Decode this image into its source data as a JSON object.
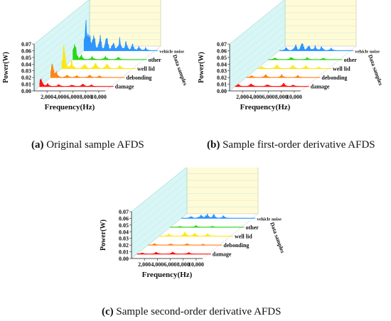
{
  "chart_data": [
    {
      "type": "area",
      "panel": "a",
      "ylabel": "Power(W)",
      "xlabel": "Frequency(Hz)",
      "zlabel": "Data samples",
      "ylim": [
        0,
        0.07
      ],
      "yticks": [
        "0.07",
        "0.06",
        "0.05",
        "0.04",
        "0.03",
        "0.02",
        "0.01",
        "0.00"
      ],
      "xlim": [
        0,
        11000
      ],
      "xticks": [
        "2,000",
        "4,000",
        "6,000",
        "8,000",
        "10,000"
      ],
      "series": [
        {
          "name": "damage",
          "color": "#ff0000",
          "peaks": [
            [
              200,
              0.018
            ],
            [
              1200,
              0.006
            ],
            [
              3000,
              0.004
            ],
            [
              5000,
              0.004
            ],
            [
              6700,
              0.005
            ],
            [
              8000,
              0.003
            ]
          ]
        },
        {
          "name": "debonding",
          "color": "#ff7a00",
          "peaks": [
            [
              250,
              0.028
            ],
            [
              800,
              0.012
            ],
            [
              2500,
              0.006
            ],
            [
              4000,
              0.004
            ],
            [
              6000,
              0.005
            ],
            [
              7500,
              0.004
            ]
          ]
        },
        {
          "name": "well lid",
          "color": "#ffe600",
          "peaks": [
            [
              300,
              0.046
            ],
            [
              1500,
              0.014
            ],
            [
              3500,
              0.01
            ],
            [
              5200,
              0.012
            ],
            [
              7000,
              0.01
            ],
            [
              9000,
              0.006
            ]
          ]
        },
        {
          "name": "other",
          "color": "#16d400",
          "peaks": [
            [
              250,
              0.042
            ],
            [
              1300,
              0.01
            ],
            [
              3000,
              0.006
            ],
            [
              5000,
              0.007
            ],
            [
              7000,
              0.005
            ]
          ]
        },
        {
          "name": "vehicle noise",
          "color": "#1a8cff",
          "peaks": [
            [
              300,
              0.07
            ],
            [
              800,
              0.04
            ],
            [
              1500,
              0.035
            ],
            [
              2500,
              0.03
            ],
            [
              3500,
              0.028
            ],
            [
              4500,
              0.022
            ],
            [
              5500,
              0.025
            ],
            [
              6500,
              0.018
            ],
            [
              7500,
              0.012
            ],
            [
              8500,
              0.008
            ],
            [
              9500,
              0.005
            ]
          ]
        }
      ],
      "caption_label": "(a)",
      "caption_text": "Original sample AFDS"
    },
    {
      "type": "area",
      "panel": "b",
      "ylabel": "Power(W)",
      "xlabel": "Frequency(Hz)",
      "zlabel": "Data samples",
      "ylim": [
        0,
        0.07
      ],
      "yticks": [
        "0.07",
        "0.06",
        "0.05",
        "0.04",
        "0.03",
        "0.02",
        "0.01",
        "0.00"
      ],
      "xlim": [
        0,
        11000
      ],
      "xticks": [
        "2,000",
        "4,000",
        "6,000",
        "8,000",
        "10,000"
      ],
      "series": [
        {
          "name": "damage",
          "color": "#ff0000",
          "peaks": [
            [
              500,
              0.005
            ],
            [
              2500,
              0.006
            ],
            [
              5000,
              0.005
            ],
            [
              7500,
              0.006
            ],
            [
              9000,
              0.003
            ]
          ]
        },
        {
          "name": "debonding",
          "color": "#ff7a00",
          "peaks": [
            [
              800,
              0.004
            ],
            [
              3000,
              0.006
            ],
            [
              5500,
              0.005
            ],
            [
              8000,
              0.004
            ]
          ]
        },
        {
          "name": "well lid",
          "color": "#ffe600",
          "peaks": [
            [
              700,
              0.005
            ],
            [
              3000,
              0.008
            ],
            [
              5500,
              0.007
            ],
            [
              7500,
              0.006
            ],
            [
              9500,
              0.003
            ]
          ]
        },
        {
          "name": "other",
          "color": "#16d400",
          "peaks": [
            [
              1000,
              0.004
            ],
            [
              3500,
              0.005
            ],
            [
              6000,
              0.004
            ],
            [
              8500,
              0.003
            ]
          ]
        },
        {
          "name": "vehicle noise",
          "color": "#1a8cff",
          "peaks": [
            [
              1000,
              0.006
            ],
            [
              2500,
              0.012
            ],
            [
              3500,
              0.016
            ],
            [
              4500,
              0.014
            ],
            [
              5500,
              0.01
            ],
            [
              6500,
              0.008
            ],
            [
              8000,
              0.005
            ]
          ]
        }
      ],
      "caption_label": "(b)",
      "caption_text": "Sample first-order derivative AFDS"
    },
    {
      "type": "area",
      "panel": "c",
      "ylabel": "Power(W)",
      "xlabel": "Frequency(Hz)",
      "zlabel": "Data samples",
      "ylim": [
        0,
        0.07
      ],
      "yticks": [
        "0.07",
        "0.06",
        "0.05",
        "0.04",
        "0.03",
        "0.02",
        "0.01",
        "0.00"
      ],
      "xlim": [
        0,
        11000
      ],
      "xticks": [
        "2,000",
        "4,000",
        "6,000",
        "8,000",
        "10,000"
      ],
      "series": [
        {
          "name": "damage",
          "color": "#ff0000",
          "peaks": [
            [
              800,
              0.003
            ],
            [
              3000,
              0.004
            ],
            [
              5500,
              0.004
            ],
            [
              8000,
              0.003
            ]
          ]
        },
        {
          "name": "debonding",
          "color": "#ff7a00",
          "peaks": [
            [
              1000,
              0.003
            ],
            [
              3500,
              0.003
            ],
            [
              6000,
              0.003
            ],
            [
              8500,
              0.002
            ]
          ]
        },
        {
          "name": "well lid",
          "color": "#ffe600",
          "peaks": [
            [
              1500,
              0.004
            ],
            [
              4000,
              0.008
            ],
            [
              5500,
              0.006
            ],
            [
              7500,
              0.005
            ]
          ]
        },
        {
          "name": "other",
          "color": "#16d400",
          "peaks": [
            [
              1500,
              0.002
            ],
            [
              4000,
              0.003
            ],
            [
              6500,
              0.002
            ]
          ]
        },
        {
          "name": "vehicle noise",
          "color": "#1a8cff",
          "peaks": [
            [
              1500,
              0.004
            ],
            [
              3000,
              0.008
            ],
            [
              4000,
              0.01
            ],
            [
              5000,
              0.008
            ],
            [
              6500,
              0.005
            ]
          ]
        }
      ],
      "caption_label": "(c)",
      "caption_text": "Sample second-order derivative AFDS"
    }
  ]
}
